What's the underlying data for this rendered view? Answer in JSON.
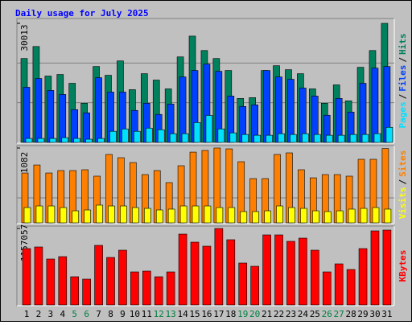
{
  "title": "Daily usage for July 2025",
  "legend_separator": "/",
  "chart_data": [
    {
      "type": "bar",
      "ylim": [
        0,
        30013
      ],
      "yticks": [
        30013
      ],
      "series": [
        {
          "name": "Hits",
          "color": "#00805c",
          "values": [
            21150,
            24170,
            16720,
            17120,
            14900,
            9870,
            19130,
            16920,
            20540,
            13290,
            17320,
            15710,
            13490,
            21550,
            26790,
            23160,
            21150,
            18130,
            11080,
            11280,
            18130,
            19330,
            18330,
            17320,
            13490,
            9870,
            14500,
            10470,
            18930,
            23160,
            30013
          ]
        },
        {
          "name": "Files",
          "color": "#0040ff",
          "values": [
            13900,
            16110,
            13090,
            12080,
            8260,
            7450,
            16310,
            12690,
            12690,
            8060,
            9870,
            7050,
            9670,
            16510,
            18130,
            19740,
            17920,
            11680,
            9060,
            9470,
            18130,
            16510,
            15910,
            13700,
            11680,
            6850,
            11080,
            7650,
            14900,
            18730,
            19130
          ]
        },
        {
          "name": "Pages",
          "color": "#00e0ff",
          "values": [
            1000,
            1000,
            1000,
            1200,
            1000,
            800,
            1000,
            2800,
            3400,
            2800,
            3600,
            3200,
            2200,
            2200,
            5000,
            6800,
            3400,
            2400,
            2000,
            1800,
            1800,
            2200,
            2000,
            2200,
            2000,
            1800,
            1800,
            2000,
            2000,
            2200,
            3800
          ]
        }
      ]
    },
    {
      "type": "bar",
      "ylim": [
        0,
        1082
      ],
      "yticks": [
        1082
      ],
      "series": [
        {
          "name": "Sites",
          "color": "#ff8000",
          "values": [
            721,
            837,
            721,
            756,
            756,
            768,
            675,
            989,
            942,
            872,
            698,
            756,
            582,
            826,
            1023,
            1047,
            1082,
            1070,
            884,
            640,
            640,
            989,
            1012,
            768,
            651,
            698,
            698,
            675,
            919,
            919,
            1075
          ]
        },
        {
          "name": "Visits",
          "color": "#ffff00",
          "values": [
            221,
            244,
            244,
            221,
            174,
            186,
            256,
            244,
            244,
            221,
            209,
            186,
            198,
            244,
            244,
            244,
            221,
            221,
            163,
            163,
            174,
            244,
            221,
            209,
            174,
            163,
            174,
            198,
            209,
            221,
            198
          ]
        }
      ]
    },
    {
      "type": "bar",
      "ylim": [
        0,
        1157057
      ],
      "yticks": [
        1157057
      ],
      "categories": [
        "1",
        "2",
        "3",
        "4",
        "5",
        "6",
        "7",
        "8",
        "9",
        "10",
        "11",
        "12",
        "13",
        "14",
        "15",
        "16",
        "17",
        "18",
        "19",
        "20",
        "21",
        "22",
        "23",
        "24",
        "25",
        "26",
        "27",
        "28",
        "29",
        "30",
        "31"
      ],
      "weekend": [
        false,
        false,
        false,
        false,
        true,
        true,
        false,
        false,
        false,
        false,
        false,
        true,
        true,
        false,
        false,
        false,
        false,
        false,
        true,
        true,
        false,
        false,
        false,
        false,
        false,
        true,
        true,
        false,
        false,
        false,
        false
      ],
      "weekend_color": "#008040",
      "series": [
        {
          "name": "KBytes",
          "color": "#ff0000",
          "values": [
            852600,
            877000,
            694300,
            730800,
            426300,
            389800,
            901300,
            718600,
            828200,
            499400,
            511600,
            426300,
            499400,
            1071800,
            950000,
            889100,
            1157057,
            986600,
            633400,
            584600,
            1059700,
            1059700,
            962200,
            1010900,
            828200,
            499400,
            621200,
            535900,
            852600,
            1120600,
            1132700
          ]
        }
      ]
    }
  ]
}
